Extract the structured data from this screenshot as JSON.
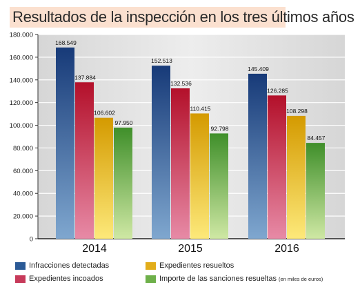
{
  "title": "Resultados de la inspección en los tres últimos años",
  "legend": {
    "items": [
      {
        "label": "Infracciones detectadas",
        "note": ""
      },
      {
        "label": "Expedientes incoados",
        "note": ""
      },
      {
        "label": "Expedientes resueltos",
        "note": ""
      },
      {
        "label": "Importe de las sanciones resueltas",
        "note": "(en miles de euros)"
      }
    ]
  },
  "colors": {
    "title_bg": "#fbe0cf",
    "plot_bg": "#e6e6e6",
    "series": [
      {
        "top": "#173a78",
        "bottom": "#7fa7cf"
      },
      {
        "top": "#b3102a",
        "bottom": "#e78aa6"
      },
      {
        "top": "#d49a00",
        "bottom": "#fde97a"
      },
      {
        "top": "#3f8f2a",
        "bottom": "#cfe8a4"
      }
    ]
  },
  "chart_data": {
    "type": "bar",
    "categories": [
      "2014",
      "2015",
      "2016"
    ],
    "series": [
      {
        "name": "Infracciones detectadas",
        "values": [
          168549,
          152513,
          145409
        ],
        "value_labels": [
          "168.549",
          "152.513",
          "145.409"
        ]
      },
      {
        "name": "Expedientes incoados",
        "values": [
          137884,
          132536,
          126285
        ],
        "value_labels": [
          "137.884",
          "132.536",
          "126.285"
        ]
      },
      {
        "name": "Expedientes resueltos",
        "values": [
          106602,
          110415,
          108298
        ],
        "value_labels": [
          "106.602",
          "110.415",
          "108.298"
        ]
      },
      {
        "name": "Importe de las sanciones resueltas",
        "values": [
          97950,
          92798,
          84457
        ],
        "value_labels": [
          "97.950",
          "92.798",
          "84.457"
        ]
      }
    ],
    "yticks": [
      0,
      20000,
      40000,
      60000,
      80000,
      100000,
      120000,
      140000,
      160000,
      180000
    ],
    "ytick_labels": [
      "0",
      "20.000",
      "40.000",
      "60.000",
      "80.000",
      "100.000",
      "120.000",
      "140.000",
      "160.000",
      "180.000"
    ],
    "ylim": [
      0,
      180000
    ],
    "grid": true,
    "legend_position": "bottom",
    "xlabel": "",
    "ylabel": ""
  }
}
